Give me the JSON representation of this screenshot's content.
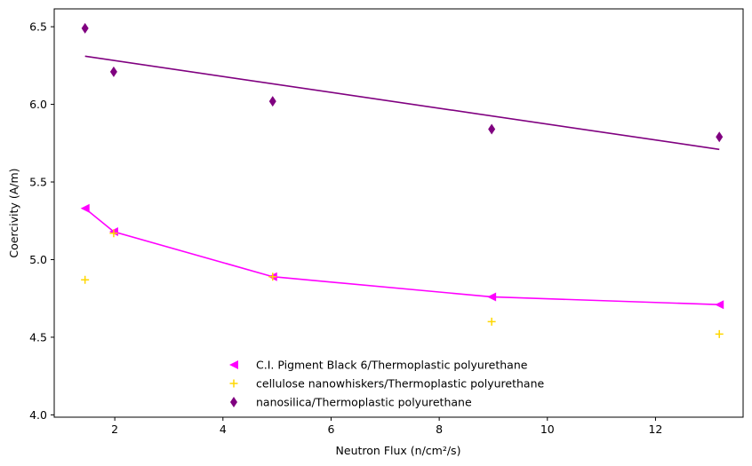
{
  "chart_data": {
    "type": "scatter",
    "xlabel": "Neutron Flux (n/cm²/s)",
    "ylabel": "Coercivity (A/m)",
    "xlim": [
      0.88,
      13.62
    ],
    "ylim": [
      3.985,
      6.615
    ],
    "x_ticks": [
      2,
      4,
      6,
      8,
      10,
      12
    ],
    "x_tick_labels": [
      "2",
      "4",
      "6",
      "8",
      "10",
      "12"
    ],
    "y_ticks": [
      4.0,
      4.5,
      5.0,
      5.5,
      6.0,
      6.5
    ],
    "y_tick_labels": [
      "4.0",
      "4.5",
      "5.0",
      "5.5",
      "6.0",
      "6.5"
    ],
    "grid": false,
    "legend_position": "bottom-center",
    "series": [
      {
        "name": "C.I. Pigment Black 6/Thermoplastic polyurethane",
        "marker": "triangle-left",
        "color": "#ff00ff",
        "x": [
          1.45,
          1.98,
          4.92,
          8.97,
          13.18
        ],
        "y": [
          5.33,
          5.18,
          4.89,
          4.76,
          4.71
        ],
        "fit_line": {
          "x": [
            1.45,
            1.98,
            4.92,
            8.97,
            13.18
          ],
          "y": [
            5.33,
            5.18,
            4.89,
            4.76,
            4.71
          ]
        }
      },
      {
        "name": "cellulose nanowhiskers/Thermoplastic polyurethane",
        "marker": "plus",
        "color": "#ffd700",
        "x": [
          1.45,
          1.98,
          4.92,
          8.97,
          13.18
        ],
        "y": [
          4.87,
          5.17,
          4.89,
          4.6,
          4.52
        ]
      },
      {
        "name": "nanosilica/Thermoplastic polyurethane",
        "marker": "thin-diamond",
        "color": "#800080",
        "x": [
          1.45,
          1.98,
          4.92,
          8.97,
          13.18
        ],
        "y": [
          6.49,
          6.21,
          6.02,
          5.84,
          5.79
        ],
        "fit_line": {
          "x": [
            1.45,
            13.18
          ],
          "y": [
            6.31,
            5.71
          ]
        }
      }
    ]
  }
}
